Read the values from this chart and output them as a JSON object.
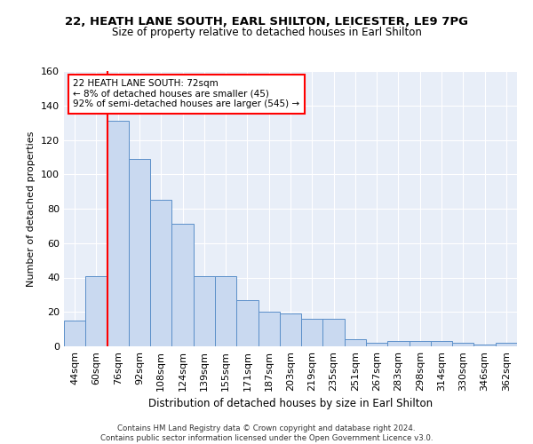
{
  "title1": "22, HEATH LANE SOUTH, EARL SHILTON, LEICESTER, LE9 7PG",
  "title2": "Size of property relative to detached houses in Earl Shilton",
  "xlabel": "Distribution of detached houses by size in Earl Shilton",
  "ylabel": "Number of detached properties",
  "bar_labels": [
    "44sqm",
    "60sqm",
    "76sqm",
    "92sqm",
    "108sqm",
    "124sqm",
    "139sqm",
    "155sqm",
    "171sqm",
    "187sqm",
    "203sqm",
    "219sqm",
    "235sqm",
    "251sqm",
    "267sqm",
    "283sqm",
    "298sqm",
    "314sqm",
    "330sqm",
    "346sqm",
    "362sqm"
  ],
  "bar_values": [
    15,
    41,
    131,
    109,
    85,
    71,
    41,
    41,
    27,
    20,
    19,
    16,
    16,
    4,
    2,
    3,
    3,
    3,
    2,
    1,
    2
  ],
  "bar_color": "#c9d9f0",
  "bar_edgecolor": "#5b8fc9",
  "red_line_index": 1.5,
  "annotation_text": "22 HEATH LANE SOUTH: 72sqm\n← 8% of detached houses are smaller (45)\n92% of semi-detached houses are larger (545) →",
  "ylim": [
    0,
    160
  ],
  "yticks": [
    0,
    20,
    40,
    60,
    80,
    100,
    120,
    140,
    160
  ],
  "footer": "Contains HM Land Registry data © Crown copyright and database right 2024.\nContains public sector information licensed under the Open Government Licence v3.0.",
  "bg_color": "#e8eef8"
}
